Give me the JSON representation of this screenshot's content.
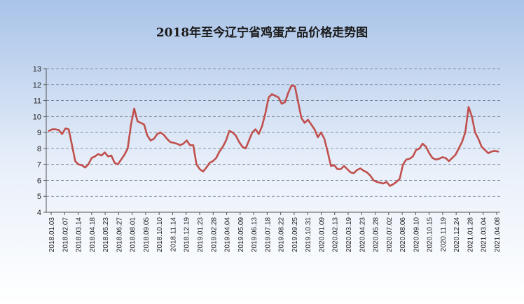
{
  "chart_data": {
    "type": "line",
    "title": "2018年至今辽宁省鸡蛋产品价格走势图",
    "xlabel": "",
    "ylabel": "",
    "ylim": [
      4,
      13
    ],
    "yticks": [
      4,
      5,
      6,
      7,
      8,
      9,
      10,
      11,
      12,
      13
    ],
    "grid": true,
    "line_color": "#c0504d",
    "x_tick_labels": [
      "2018.01.03",
      "2018.02.07",
      "2018.03.14",
      "2018.04.18",
      "2018.05.23",
      "2018.06.27",
      "2018.08.01",
      "2018.09.05",
      "2018.10.10",
      "2018.11.14",
      "2018.12.19",
      "2019.01.23",
      "2019.02.28",
      "2019.04.04",
      "2019.05.09",
      "2019.06.13",
      "2019.07.18",
      "2019.08.22",
      "2019.09.25",
      "2019.10.31",
      "2020.01.09",
      "2020.02.13",
      "2020.03.19",
      "2020.04.23",
      "2020.05.28",
      "2020.07.02",
      "2020.08.06",
      "2020.09.10",
      "2020.10.15",
      "2020.11.19",
      "2020.12.24",
      "2021.01.28",
      "2021.03.04",
      "2021.04.08"
    ],
    "series": [
      {
        "values": [
          9.1,
          9.2,
          9.2,
          9.15,
          8.9,
          9.25,
          9.2,
          8.2,
          7.2,
          7.0,
          6.95,
          6.8,
          7.0,
          7.4,
          7.5,
          7.65,
          7.55,
          7.75,
          7.5,
          7.55,
          7.1,
          7.0,
          7.3,
          7.6,
          8.0,
          9.5,
          10.5,
          9.7,
          9.6,
          9.5,
          8.8,
          8.5,
          8.6,
          8.9,
          9.0,
          8.85,
          8.6,
          8.4,
          8.35,
          8.3,
          8.2,
          8.3,
          8.5,
          8.2,
          8.2,
          7.0,
          6.7,
          6.55,
          6.8,
          7.1,
          7.2,
          7.4,
          7.8,
          8.1,
          8.5,
          9.1,
          9.0,
          8.8,
          8.4,
          8.1,
          8.0,
          8.5,
          9.0,
          9.2,
          8.9,
          9.4,
          10.2,
          11.2,
          11.4,
          11.3,
          11.2,
          10.8,
          10.9,
          11.5,
          11.95,
          11.9,
          10.9,
          9.9,
          9.6,
          9.8,
          9.5,
          9.2,
          8.7,
          9.0,
          8.6,
          7.8,
          6.9,
          6.95,
          6.7,
          6.7,
          6.9,
          6.7,
          6.5,
          6.45,
          6.65,
          6.75,
          6.6,
          6.5,
          6.3,
          6.0,
          5.9,
          5.85,
          5.8,
          5.9,
          5.65,
          5.75,
          5.9,
          6.1,
          7.0,
          7.3,
          7.35,
          7.5,
          7.9,
          8.0,
          8.3,
          8.1,
          7.7,
          7.4,
          7.3,
          7.35,
          7.45,
          7.4,
          7.2,
          7.4,
          7.6,
          8.0,
          8.4,
          9.0,
          10.6,
          10.0,
          9.0,
          8.6,
          8.1,
          7.9,
          7.7,
          7.8,
          7.85,
          7.8
        ]
      }
    ]
  }
}
